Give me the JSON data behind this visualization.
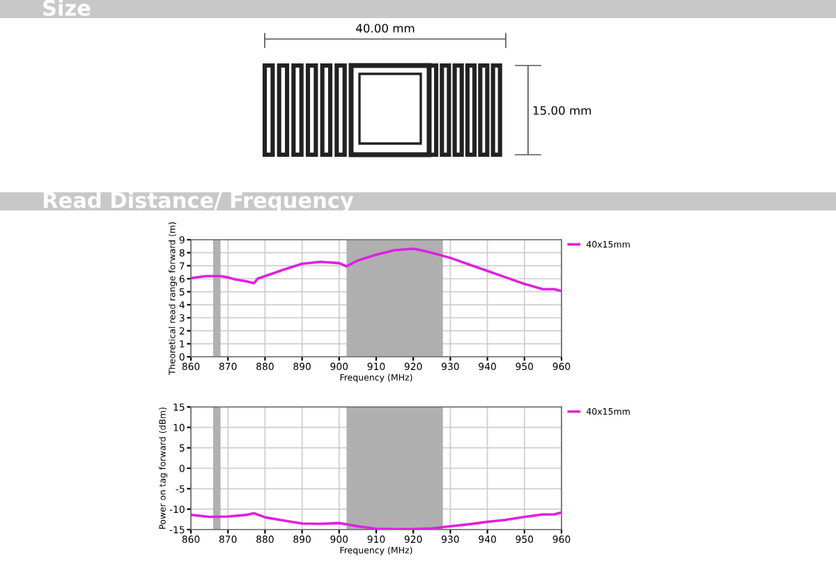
{
  "chart_data": [
    {
      "type": "other",
      "title": "Size",
      "annotations": [
        "40.00 mm",
        "15.00 mm"
      ]
    },
    {
      "type": "line",
      "title": "Read Distance/ Frequency",
      "xlabel": "Frequency (MHz)",
      "ylabel": "Theoretical read range forward (m)",
      "x": [
        860,
        864,
        868,
        870,
        872,
        875,
        877,
        878,
        880,
        885,
        890,
        895,
        900,
        902,
        905,
        910,
        915,
        920,
        922,
        925,
        930,
        935,
        940,
        945,
        950,
        955,
        958,
        960
      ],
      "series": [
        {
          "name": "40x15mm",
          "color": "#e020e0",
          "values": [
            6.05,
            6.2,
            6.2,
            6.1,
            5.95,
            5.8,
            5.65,
            6.0,
            6.2,
            6.7,
            7.15,
            7.3,
            7.2,
            6.95,
            7.4,
            7.85,
            8.2,
            8.3,
            8.2,
            8.0,
            7.6,
            7.1,
            6.6,
            6.1,
            5.6,
            5.2,
            5.2,
            5.05
          ]
        }
      ],
      "xlim": [
        860,
        960
      ],
      "ylim": [
        0,
        9
      ],
      "xticks": [
        860,
        870,
        880,
        890,
        900,
        910,
        920,
        930,
        940,
        950,
        960
      ],
      "yticks": [
        0,
        1,
        2,
        3,
        4,
        5,
        6,
        7,
        8,
        9
      ],
      "bands": [
        {
          "axis": "x",
          "from": 866,
          "to": 868,
          "color": "#b0b0b0"
        },
        {
          "axis": "x",
          "from": 902,
          "to": 928,
          "color": "#b0b0b0"
        }
      ],
      "grid": true,
      "legend": "right"
    },
    {
      "type": "line",
      "xlabel": "Frequency (MHz)",
      "ylabel": "Power on tag forward (dBm)",
      "x": [
        860,
        865,
        870,
        875,
        877,
        880,
        885,
        890,
        895,
        900,
        905,
        910,
        915,
        920,
        925,
        930,
        935,
        940,
        945,
        950,
        955,
        958,
        960
      ],
      "series": [
        {
          "name": "40x15mm",
          "color": "#e020e0",
          "values": [
            -11.4,
            -11.9,
            -11.8,
            -11.4,
            -11.0,
            -12.0,
            -12.8,
            -13.5,
            -13.6,
            -13.4,
            -14.2,
            -14.8,
            -14.9,
            -14.9,
            -14.7,
            -14.2,
            -13.7,
            -13.1,
            -12.6,
            -11.9,
            -11.3,
            -11.3,
            -10.8
          ]
        }
      ],
      "xlim": [
        860,
        960
      ],
      "ylim": [
        -15,
        15
      ],
      "xticks": [
        860,
        870,
        880,
        890,
        900,
        910,
        920,
        930,
        940,
        950,
        960
      ],
      "yticks": [
        -15,
        -10,
        -5,
        0,
        5,
        10,
        15
      ],
      "bands": [
        {
          "axis": "x",
          "from": 866,
          "to": 868,
          "color": "#b0b0b0"
        },
        {
          "axis": "x",
          "from": 902,
          "to": 928,
          "color": "#b0b0b0"
        }
      ],
      "grid": true,
      "legend": "right"
    }
  ]
}
